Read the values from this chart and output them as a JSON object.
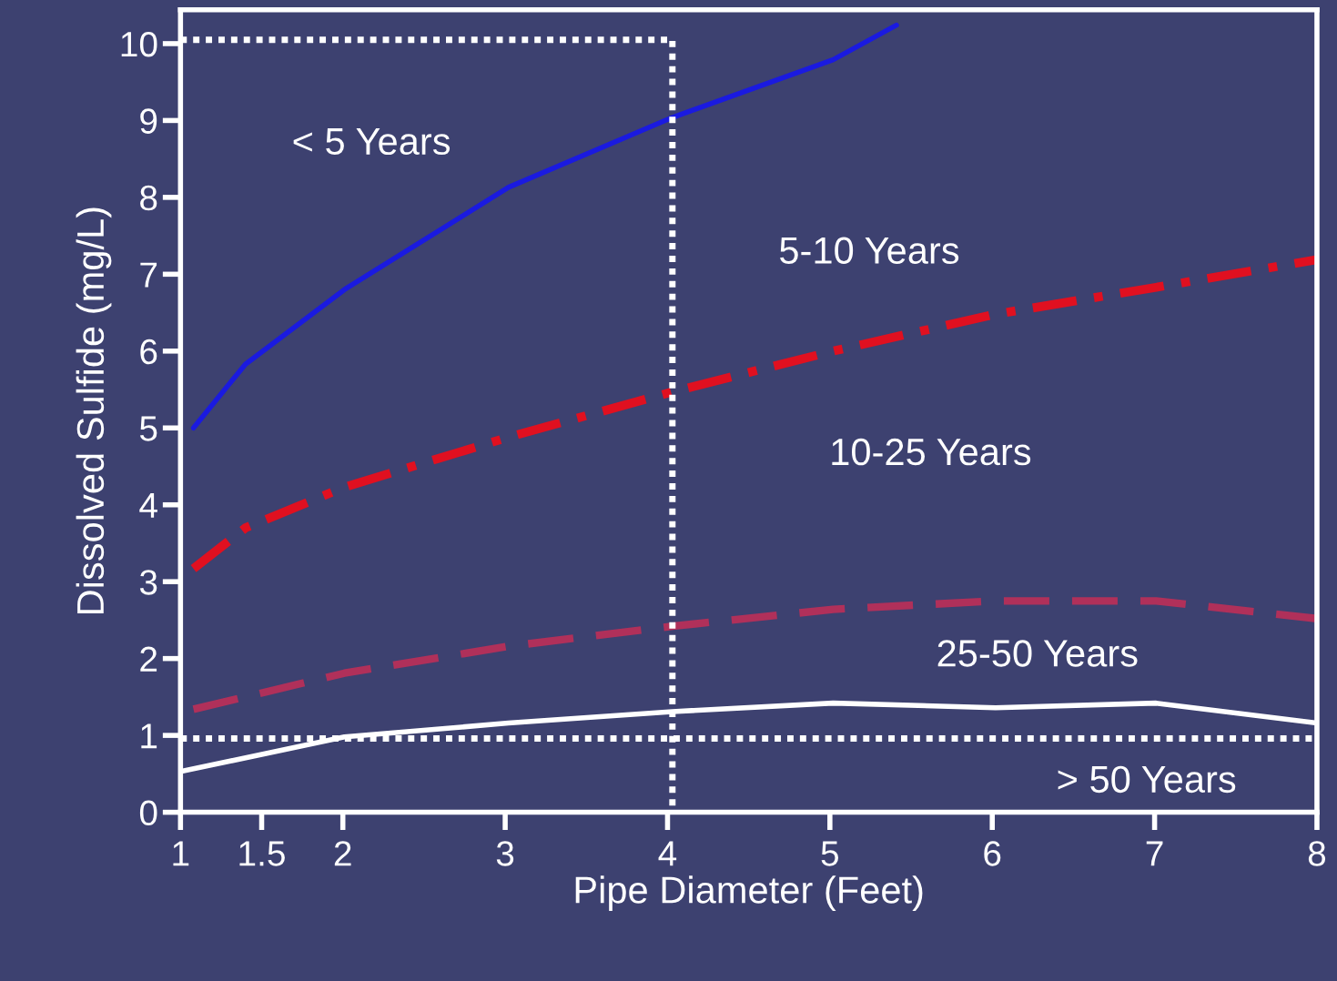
{
  "chart_data": {
    "type": "line",
    "xlabel": "Pipe Diameter (Feet)",
    "ylabel": "Dissolved Sulfide (mg/L)",
    "xlim": [
      1,
      8
    ],
    "ylim": [
      0,
      10.44
    ],
    "xticks": [
      1,
      1.5,
      2,
      3,
      4,
      5,
      6,
      7,
      8
    ],
    "yticks": [
      0,
      1,
      2,
      3,
      4,
      5,
      6,
      7,
      8,
      9,
      10
    ],
    "grid": false,
    "legend": false,
    "series": [
      {
        "color": "#1a1ae0",
        "line_style": "solid",
        "x": [
          1.08,
          1.4,
          2.01,
          3.02,
          4.03,
          5.02,
          5.41
        ],
        "values": [
          5.0,
          5.83,
          6.8,
          8.13,
          9.04,
          9.79,
          10.24
        ]
      },
      {
        "color": "#e01020",
        "line_style": "dashdot",
        "x": [
          1.08,
          1.4,
          2.01,
          3.02,
          4.03,
          5.02,
          6.02,
          7.01,
          8.0
        ],
        "values": [
          3.17,
          3.7,
          4.23,
          4.88,
          5.47,
          6.0,
          6.48,
          6.83,
          7.19
        ]
      },
      {
        "color": "#b0305a",
        "line_style": "dashed",
        "x": [
          1.08,
          2.01,
          3.02,
          4.03,
          5.02,
          6.02,
          7.01,
          8.0
        ],
        "values": [
          1.34,
          1.81,
          2.16,
          2.42,
          2.64,
          2.75,
          2.75,
          2.52
        ]
      },
      {
        "color": "#ffffff",
        "line_style": "solid",
        "x": [
          1.0,
          2.01,
          3.02,
          4.03,
          5.02,
          6.02,
          7.01,
          8.0
        ],
        "values": [
          0.53,
          0.98,
          1.16,
          1.31,
          1.42,
          1.36,
          1.42,
          1.16
        ]
      },
      {
        "color": "#ffffff",
        "line_style": "dotted",
        "x": [
          1.0,
          4.03,
          4.03
        ],
        "values": [
          10.05,
          10.05,
          0
        ]
      }
    ],
    "ref_lines": [
      {
        "axis": "y",
        "value": 0.96,
        "color": "#ffffff",
        "line_style": "dotted"
      }
    ],
    "annotations": [
      "< 5 Years",
      "5-10 Years",
      "10-25 Years",
      "25-50 Years",
      "> 50 Years"
    ]
  }
}
